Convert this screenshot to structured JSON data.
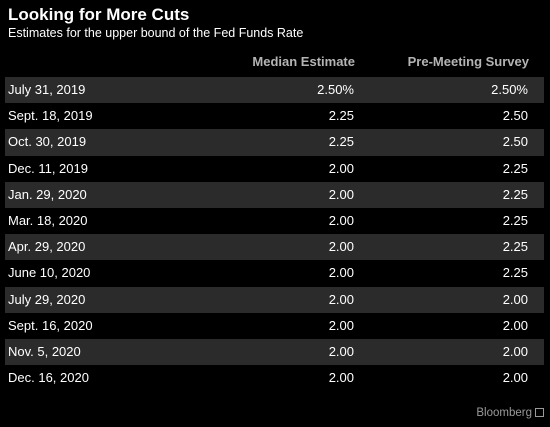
{
  "chart_data": {
    "type": "table",
    "title": "Looking for More Cuts",
    "subtitle": "Estimates for the upper bound of the Fed Funds Rate",
    "columns": [
      "",
      "Median Estimate",
      "Pre-Meeting Survey"
    ],
    "rows": [
      {
        "date": "July 31, 2019",
        "median": "2.50%",
        "survey": "2.50%"
      },
      {
        "date": "Sept. 18, 2019",
        "median": "2.25",
        "survey": "2.50"
      },
      {
        "date": "Oct. 30, 2019",
        "median": "2.25",
        "survey": "2.50"
      },
      {
        "date": "Dec. 11, 2019",
        "median": "2.00",
        "survey": "2.25"
      },
      {
        "date": "Jan. 29, 2020",
        "median": "2.00",
        "survey": "2.25"
      },
      {
        "date": "Mar. 18, 2020",
        "median": "2.00",
        "survey": "2.25"
      },
      {
        "date": "Apr. 29, 2020",
        "median": "2.00",
        "survey": "2.25"
      },
      {
        "date": "June 10, 2020",
        "median": "2.00",
        "survey": "2.25"
      },
      {
        "date": "July 29, 2020",
        "median": "2.00",
        "survey": "2.00"
      },
      {
        "date": "Sept. 16, 2020",
        "median": "2.00",
        "survey": "2.00"
      },
      {
        "date": "Nov. 5, 2020",
        "median": "2.00",
        "survey": "2.00"
      },
      {
        "date": "Dec. 16, 2020",
        "median": "2.00",
        "survey": "2.00"
      }
    ],
    "source": "Bloomberg"
  },
  "colors": {
    "background": "#000000",
    "text": "#ffffff",
    "header_text": "#b4b4b4",
    "row_shade": "#2b2b2b",
    "source_text": "#9a9a9a"
  }
}
